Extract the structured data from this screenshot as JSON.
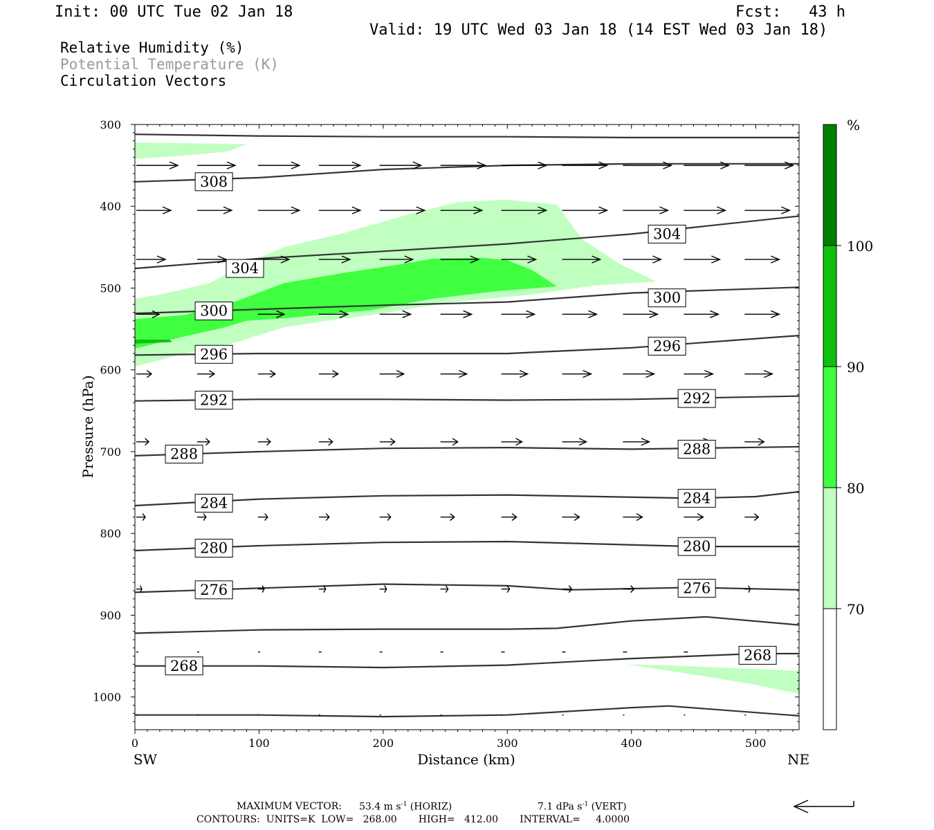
{
  "header": {
    "init": "Init: 00 UTC Tue 02 Jan 18",
    "fcst": "Fcst:   43 h",
    "valid": "Valid: 19 UTC Wed 03 Jan 18 (14 EST Wed 03 Jan 18)"
  },
  "legend": {
    "rh": "Relative Humidity (%)",
    "theta": "Potential Temperature (K)",
    "vectors": "Circulation Vectors"
  },
  "colors": {
    "rh_70_80": "#c0ffc0",
    "rh_80_90": "#40ff40",
    "rh_90_100": "#10c010",
    "rh_100": "#008000",
    "contour": "#333333",
    "theta_legend": "#9a9a9a"
  },
  "chart_data": {
    "type": "cross-section",
    "xlabel": "Distance (km)",
    "ylabel": "Pressure (hPa)",
    "xlim": [
      0,
      535
    ],
    "ylim": [
      300,
      1040
    ],
    "x_ticks": [
      "0",
      "100",
      "200",
      "300",
      "400",
      "500"
    ],
    "y_ticks": [
      "300",
      "400",
      "500",
      "600",
      "700",
      "800",
      "900",
      "1000"
    ],
    "endpoints": {
      "left": "SW",
      "right": "NE"
    },
    "colorbar": {
      "unit": "%",
      "levels": [
        "70",
        "80",
        "90",
        "100"
      ]
    },
    "isentropes": [
      {
        "label": "268",
        "points": [
          [
            0,
            962
          ],
          [
            100,
            962
          ],
          [
            200,
            964
          ],
          [
            300,
            961
          ],
          [
            400,
            953
          ],
          [
            500,
            947
          ],
          [
            535,
            947
          ]
        ]
      },
      {
        "label": "",
        "points": [
          [
            0,
            1022
          ],
          [
            100,
            1022
          ],
          [
            200,
            1024
          ],
          [
            300,
            1022
          ],
          [
            400,
            1013
          ],
          [
            430,
            1011
          ],
          [
            500,
            1019
          ],
          [
            535,
            1023
          ]
        ]
      },
      {
        "label": "",
        "points": [
          [
            0,
            922
          ],
          [
            100,
            918
          ],
          [
            200,
            917
          ],
          [
            300,
            917
          ],
          [
            340,
            916
          ],
          [
            400,
            907
          ],
          [
            460,
            902
          ],
          [
            535,
            912
          ]
        ]
      },
      {
        "label": "276",
        "points": [
          [
            0,
            872
          ],
          [
            100,
            867
          ],
          [
            200,
            862
          ],
          [
            300,
            864
          ],
          [
            350,
            869
          ],
          [
            450,
            866
          ],
          [
            535,
            869
          ]
        ]
      },
      {
        "label": "280",
        "points": [
          [
            0,
            821
          ],
          [
            100,
            815
          ],
          [
            200,
            811
          ],
          [
            300,
            810
          ],
          [
            450,
            816
          ],
          [
            535,
            816
          ]
        ]
      },
      {
        "label": "284",
        "points": [
          [
            0,
            766
          ],
          [
            100,
            758
          ],
          [
            200,
            754
          ],
          [
            300,
            753
          ],
          [
            450,
            757
          ],
          [
            500,
            755
          ],
          [
            535,
            749
          ]
        ]
      },
      {
        "label": "288",
        "points": [
          [
            0,
            705
          ],
          [
            100,
            700
          ],
          [
            200,
            696
          ],
          [
            300,
            695
          ],
          [
            400,
            697
          ],
          [
            535,
            694
          ]
        ]
      },
      {
        "label": "292",
        "points": [
          [
            0,
            638
          ],
          [
            100,
            636
          ],
          [
            200,
            636
          ],
          [
            300,
            637
          ],
          [
            400,
            636
          ],
          [
            535,
            632
          ]
        ]
      },
      {
        "label": "296",
        "points": [
          [
            0,
            582
          ],
          [
            100,
            580
          ],
          [
            200,
            580
          ],
          [
            300,
            580
          ],
          [
            400,
            573
          ],
          [
            535,
            558
          ]
        ]
      },
      {
        "label": "300",
        "points": [
          [
            0,
            531
          ],
          [
            100,
            526
          ],
          [
            200,
            521
          ],
          [
            300,
            517
          ],
          [
            400,
            506
          ],
          [
            535,
            499
          ]
        ]
      },
      {
        "label": "304",
        "points": [
          [
            0,
            476
          ],
          [
            100,
            464
          ],
          [
            200,
            455
          ],
          [
            300,
            446
          ],
          [
            400,
            434
          ],
          [
            535,
            412
          ]
        ]
      },
      {
        "label": "308",
        "points": [
          [
            0,
            370
          ],
          [
            100,
            365
          ],
          [
            200,
            355
          ],
          [
            300,
            350
          ],
          [
            400,
            348
          ],
          [
            535,
            348
          ]
        ]
      },
      {
        "label": "",
        "points": [
          [
            0,
            312
          ],
          [
            100,
            314
          ],
          [
            200,
            315
          ],
          [
            300,
            315
          ],
          [
            400,
            316
          ],
          [
            535,
            316
          ]
        ]
      }
    ],
    "isentrope_labels": [
      {
        "text": "308",
        "x": 48,
        "p": 370
      },
      {
        "text": "304",
        "x": 73,
        "p": 476
      },
      {
        "text": "304",
        "x": 413,
        "p": 434
      },
      {
        "text": "300",
        "x": 48,
        "p": 528
      },
      {
        "text": "300",
        "x": 413,
        "p": 512
      },
      {
        "text": "296",
        "x": 48,
        "p": 581
      },
      {
        "text": "296",
        "x": 413,
        "p": 571
      },
      {
        "text": "292",
        "x": 48,
        "p": 637
      },
      {
        "text": "292",
        "x": 437,
        "p": 635
      },
      {
        "text": "288",
        "x": 24,
        "p": 703
      },
      {
        "text": "288",
        "x": 437,
        "p": 697
      },
      {
        "text": "284",
        "x": 48,
        "p": 763
      },
      {
        "text": "284",
        "x": 437,
        "p": 757
      },
      {
        "text": "280",
        "x": 48,
        "p": 818
      },
      {
        "text": "280",
        "x": 437,
        "p": 816
      },
      {
        "text": "276",
        "x": 48,
        "p": 869
      },
      {
        "text": "276",
        "x": 437,
        "p": 867
      },
      {
        "text": "268",
        "x": 24,
        "p": 962
      },
      {
        "text": "268",
        "x": 486,
        "p": 949
      }
    ],
    "rh_regions": [
      {
        "level": "70-80",
        "points": [
          [
            0,
            322
          ],
          [
            90,
            324
          ],
          [
            75,
            333
          ],
          [
            40,
            338
          ],
          [
            0,
            342
          ]
        ]
      },
      {
        "level": "70-80",
        "points": [
          [
            0,
            513
          ],
          [
            20,
            508
          ],
          [
            60,
            494
          ],
          [
            90,
            470
          ],
          [
            120,
            450
          ],
          [
            170,
            432
          ],
          [
            220,
            410
          ],
          [
            260,
            395
          ],
          [
            300,
            392
          ],
          [
            340,
            398
          ],
          [
            360,
            440
          ],
          [
            390,
            470
          ],
          [
            420,
            492
          ],
          [
            370,
            497
          ],
          [
            320,
            508
          ],
          [
            250,
            518
          ],
          [
            200,
            531
          ],
          [
            150,
            541
          ],
          [
            120,
            548
          ],
          [
            80,
            567
          ],
          [
            40,
            580
          ],
          [
            0,
            596
          ]
        ]
      },
      {
        "level": "80-90",
        "points": [
          [
            0,
            548
          ],
          [
            0,
            538
          ],
          [
            40,
            533
          ],
          [
            80,
            517
          ],
          [
            120,
            494
          ],
          [
            170,
            481
          ],
          [
            210,
            472
          ],
          [
            240,
            464
          ],
          [
            280,
            463
          ],
          [
            300,
            466
          ],
          [
            320,
            478
          ],
          [
            340,
            498
          ],
          [
            290,
            504
          ],
          [
            240,
            513
          ],
          [
            190,
            527
          ],
          [
            120,
            537
          ],
          [
            90,
            540
          ],
          [
            70,
            549
          ],
          [
            40,
            559
          ],
          [
            0,
            574
          ]
        ]
      },
      {
        "level": "90-100",
        "points": [
          [
            0,
            563
          ],
          [
            28,
            563
          ],
          [
            30,
            566
          ],
          [
            0,
            568
          ]
        ]
      },
      {
        "level": "70-80",
        "points": [
          [
            396,
            960
          ],
          [
            440,
            962
          ],
          [
            535,
            968
          ],
          [
            535,
            996
          ],
          [
            500,
            985
          ],
          [
            460,
            975
          ]
        ]
      }
    ],
    "vectors": [
      {
        "p": 350,
        "row": [
          [
            0,
            60
          ],
          [
            49,
            55
          ],
          [
            98,
            60
          ],
          [
            147,
            60
          ],
          [
            196,
            60
          ],
          [
            245,
            65
          ],
          [
            294,
            65
          ],
          [
            343,
            65
          ],
          [
            392,
            70
          ],
          [
            441,
            65
          ],
          [
            490,
            70
          ],
          [
            539,
            70
          ]
        ]
      },
      {
        "p": 405,
        "row": [
          [
            0,
            50
          ],
          [
            49,
            50
          ],
          [
            98,
            60
          ],
          [
            147,
            60
          ],
          [
            196,
            65
          ],
          [
            245,
            60
          ],
          [
            294,
            65
          ],
          [
            343,
            65
          ],
          [
            392,
            65
          ],
          [
            441,
            60
          ],
          [
            490,
            65
          ],
          [
            539,
            60
          ]
        ]
      },
      {
        "p": 465,
        "row": [
          [
            0,
            42
          ],
          [
            49,
            42
          ],
          [
            98,
            45
          ],
          [
            147,
            45
          ],
          [
            196,
            48
          ],
          [
            245,
            55
          ],
          [
            294,
            50
          ],
          [
            343,
            55
          ],
          [
            392,
            55
          ],
          [
            441,
            52
          ],
          [
            490,
            50
          ],
          [
            539,
            50
          ]
        ]
      },
      {
        "p": 532,
        "row": [
          [
            0,
            33
          ],
          [
            49,
            35
          ],
          [
            98,
            38
          ],
          [
            147,
            42
          ],
          [
            196,
            45
          ],
          [
            245,
            45
          ],
          [
            294,
            48
          ],
          [
            343,
            50
          ],
          [
            392,
            50
          ],
          [
            441,
            50
          ],
          [
            490,
            50
          ],
          [
            539,
            45
          ]
        ]
      },
      {
        "p": 605,
        "row": [
          [
            0,
            22
          ],
          [
            49,
            25
          ],
          [
            98,
            25
          ],
          [
            147,
            28
          ],
          [
            196,
            35
          ],
          [
            245,
            38
          ],
          [
            294,
            38
          ],
          [
            343,
            42
          ],
          [
            392,
            45
          ],
          [
            441,
            42
          ],
          [
            490,
            40
          ],
          [
            539,
            35
          ]
        ]
      },
      {
        "p": 688,
        "row": [
          [
            0,
            18
          ],
          [
            49,
            18
          ],
          [
            98,
            18
          ],
          [
            147,
            20
          ],
          [
            196,
            22
          ],
          [
            245,
            25
          ],
          [
            294,
            30
          ],
          [
            343,
            35
          ],
          [
            392,
            38
          ],
          [
            441,
            40
          ],
          [
            490,
            28
          ],
          [
            539,
            25
          ]
        ]
      },
      {
        "p": 780,
        "row": [
          [
            0,
            13
          ],
          [
            49,
            13
          ],
          [
            98,
            14
          ],
          [
            147,
            15
          ],
          [
            196,
            16
          ],
          [
            245,
            20
          ],
          [
            294,
            22
          ],
          [
            343,
            25
          ],
          [
            392,
            28
          ],
          [
            441,
            28
          ],
          [
            490,
            20
          ],
          [
            539,
            18
          ]
        ]
      },
      {
        "p": 868,
        "row": [
          [
            0,
            8
          ],
          [
            49,
            8
          ],
          [
            98,
            9
          ],
          [
            147,
            10
          ],
          [
            196,
            10
          ],
          [
            245,
            11
          ],
          [
            294,
            12
          ],
          [
            343,
            14
          ],
          [
            392,
            16
          ],
          [
            441,
            16
          ],
          [
            490,
            8
          ],
          [
            539,
            8
          ]
        ]
      },
      {
        "p": 945,
        "row": [
          [
            0,
            3
          ],
          [
            49,
            3
          ],
          [
            98,
            3
          ],
          [
            147,
            4
          ],
          [
            196,
            4
          ],
          [
            245,
            4
          ],
          [
            294,
            5
          ],
          [
            343,
            5
          ],
          [
            392,
            6
          ],
          [
            441,
            6
          ],
          [
            490,
            4
          ],
          [
            539,
            4
          ]
        ]
      },
      {
        "p": 1022,
        "row": [
          [
            0,
            2
          ],
          [
            49,
            2
          ],
          [
            98,
            2
          ],
          [
            147,
            2
          ],
          [
            196,
            2
          ],
          [
            245,
            2
          ],
          [
            294,
            2
          ],
          [
            343,
            2
          ],
          [
            392,
            2
          ],
          [
            441,
            2
          ],
          [
            490,
            2
          ],
          [
            539,
            2
          ]
        ]
      }
    ]
  },
  "footer": {
    "maxvec_label": "MAXIMUM VECTOR:",
    "maxvec_h": "53.4 m s",
    "maxvec_h_unit": " (HORIZ)",
    "maxvec_v": "7.1 dPa s",
    "maxvec_v_unit": " (VERT)",
    "exp": "-1",
    "contours": "CONTOURS:  UNITS=K  LOW=   268.00       HIGH=   412.00       INTERVAL=     4.0000"
  }
}
